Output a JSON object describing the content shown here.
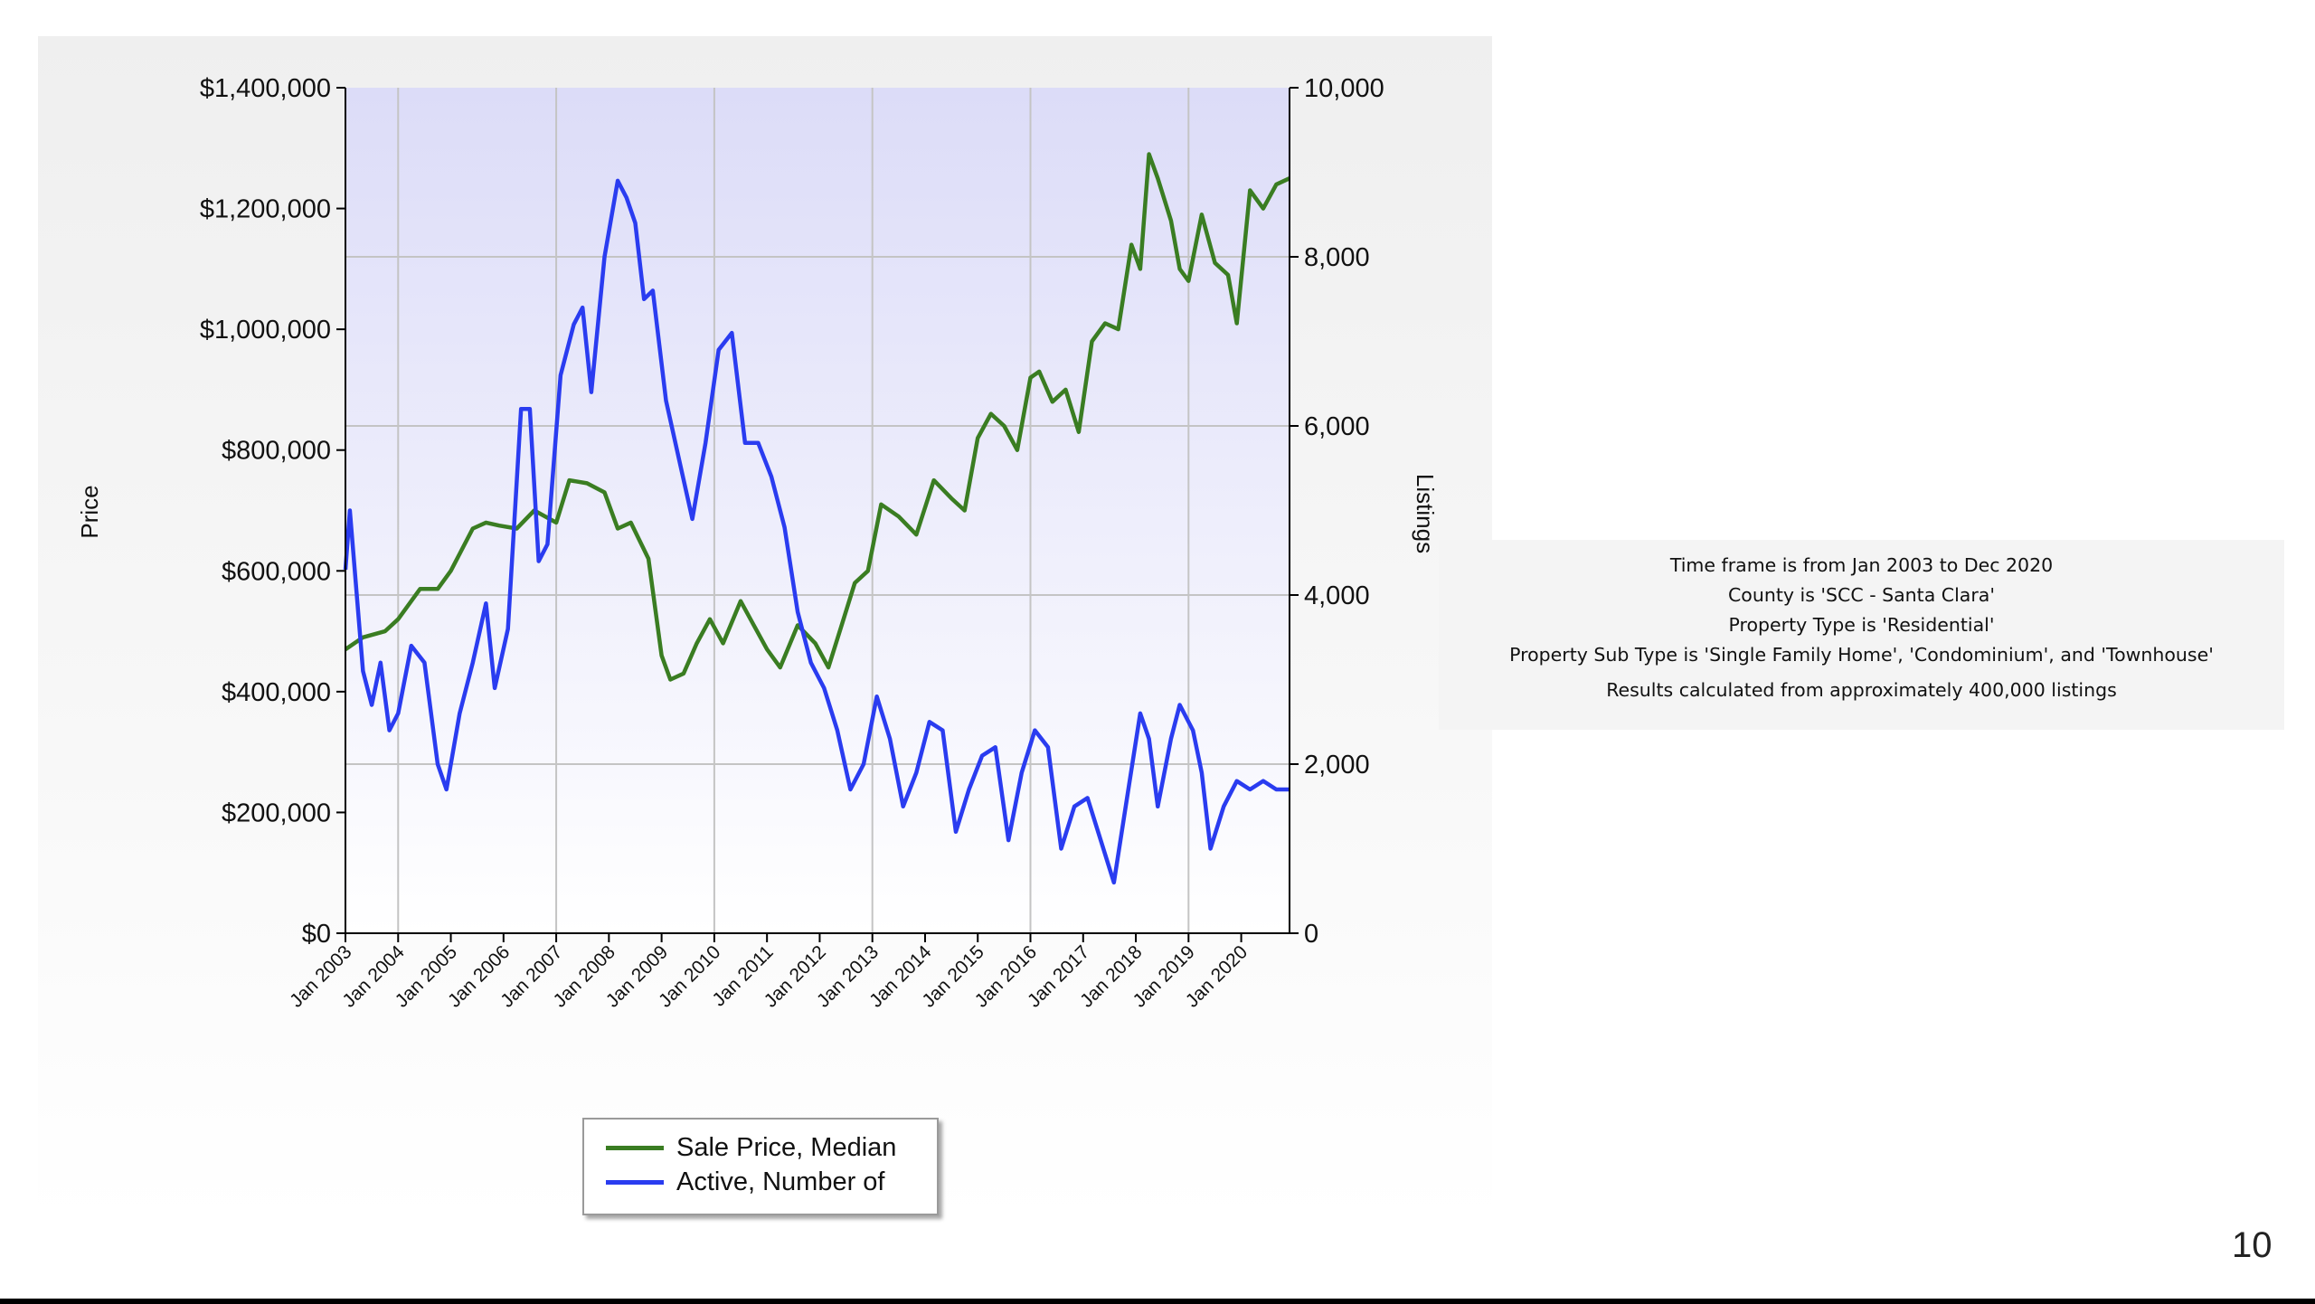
{
  "page_number": "10",
  "info_box": {
    "lines": [
      "Time frame is from Jan 2003 to Dec 2020",
      "County is 'SCC - Santa Clara'",
      "Property Type is 'Residential'",
      "Property Sub Type is 'Single Family Home', 'Condominium', and 'Townhouse'"
    ],
    "results": "Results calculated from approximately 400,000 listings"
  },
  "chart_data": {
    "type": "line",
    "ylabel": "Price",
    "y2label": "Listings",
    "ylim": [
      0,
      1400000
    ],
    "y2lim": [
      0,
      10000
    ],
    "y_ticks": [
      "$0",
      "$200,000",
      "$400,000",
      "$600,000",
      "$800,000",
      "$1,000,000",
      "$1,200,000",
      "$1,400,000"
    ],
    "y2_ticks": [
      "0",
      "2,000",
      "4,000",
      "6,000",
      "8,000",
      "10,000"
    ],
    "x_ticks": [
      "Jan 2003",
      "Jan 2004",
      "Jan 2005",
      "Jan 2006",
      "Jan 2007",
      "Jan 2008",
      "Jan 2009",
      "Jan 2010",
      "Jan 2011",
      "Jan 2012",
      "Jan 2013",
      "Jan 2014",
      "Jan 2015",
      "Jan 2016",
      "Jan 2017",
      "Jan 2018",
      "Jan 2019",
      "Jan 2020"
    ],
    "x_range": [
      "2003-01",
      "2020-12"
    ],
    "grid": true,
    "legend_position": "bottom",
    "series": [
      {
        "name": "Sale Price, Median",
        "axis": "left",
        "color": "#3a7d22",
        "points": [
          [
            "2003-01",
            470000
          ],
          [
            "2003-05",
            490000
          ],
          [
            "2003-10",
            500000
          ],
          [
            "2004-01",
            520000
          ],
          [
            "2004-06",
            570000
          ],
          [
            "2004-10",
            570000
          ],
          [
            "2005-01",
            600000
          ],
          [
            "2005-06",
            670000
          ],
          [
            "2005-09",
            680000
          ],
          [
            "2005-12",
            675000
          ],
          [
            "2006-04",
            670000
          ],
          [
            "2006-08",
            700000
          ],
          [
            "2007-01",
            680000
          ],
          [
            "2007-04",
            750000
          ],
          [
            "2007-08",
            745000
          ],
          [
            "2007-12",
            730000
          ],
          [
            "2008-03",
            670000
          ],
          [
            "2008-06",
            680000
          ],
          [
            "2008-10",
            620000
          ],
          [
            "2009-01",
            460000
          ],
          [
            "2009-03",
            420000
          ],
          [
            "2009-06",
            430000
          ],
          [
            "2009-09",
            480000
          ],
          [
            "2009-12",
            520000
          ],
          [
            "2010-03",
            480000
          ],
          [
            "2010-07",
            550000
          ],
          [
            "2010-10",
            510000
          ],
          [
            "2011-01",
            470000
          ],
          [
            "2011-04",
            440000
          ],
          [
            "2011-08",
            510000
          ],
          [
            "2011-12",
            480000
          ],
          [
            "2012-03",
            440000
          ],
          [
            "2012-06",
            510000
          ],
          [
            "2012-09",
            580000
          ],
          [
            "2012-12",
            600000
          ],
          [
            "2013-03",
            710000
          ],
          [
            "2013-07",
            690000
          ],
          [
            "2013-11",
            660000
          ],
          [
            "2014-03",
            750000
          ],
          [
            "2014-07",
            720000
          ],
          [
            "2014-10",
            700000
          ],
          [
            "2015-01",
            820000
          ],
          [
            "2015-04",
            860000
          ],
          [
            "2015-07",
            840000
          ],
          [
            "2015-10",
            800000
          ],
          [
            "2016-01",
            920000
          ],
          [
            "2016-03",
            930000
          ],
          [
            "2016-06",
            880000
          ],
          [
            "2016-09",
            900000
          ],
          [
            "2016-12",
            830000
          ],
          [
            "2017-03",
            980000
          ],
          [
            "2017-06",
            1010000
          ],
          [
            "2017-09",
            1000000
          ],
          [
            "2017-12",
            1140000
          ],
          [
            "2018-02",
            1100000
          ],
          [
            "2018-04",
            1290000
          ],
          [
            "2018-06",
            1250000
          ],
          [
            "2018-09",
            1180000
          ],
          [
            "2018-11",
            1100000
          ],
          [
            "2019-01",
            1080000
          ],
          [
            "2019-04",
            1190000
          ],
          [
            "2019-07",
            1110000
          ],
          [
            "2019-10",
            1090000
          ],
          [
            "2019-12",
            1010000
          ],
          [
            "2020-03",
            1230000
          ],
          [
            "2020-06",
            1200000
          ],
          [
            "2020-09",
            1240000
          ],
          [
            "2020-12",
            1250000
          ]
        ]
      },
      {
        "name": "Active, Number of",
        "axis": "right",
        "color": "#2a3cf0",
        "points": [
          [
            "2003-01",
            4300
          ],
          [
            "2003-02",
            5000
          ],
          [
            "2003-05",
            3100
          ],
          [
            "2003-07",
            2700
          ],
          [
            "2003-09",
            3200
          ],
          [
            "2003-11",
            2400
          ],
          [
            "2004-01",
            2600
          ],
          [
            "2004-04",
            3400
          ],
          [
            "2004-07",
            3200
          ],
          [
            "2004-10",
            2000
          ],
          [
            "2004-12",
            1700
          ],
          [
            "2005-03",
            2600
          ],
          [
            "2005-06",
            3200
          ],
          [
            "2005-09",
            3900
          ],
          [
            "2005-11",
            2900
          ],
          [
            "2006-02",
            3600
          ],
          [
            "2006-05",
            6200
          ],
          [
            "2006-07",
            6200
          ],
          [
            "2006-09",
            4400
          ],
          [
            "2006-11",
            4600
          ],
          [
            "2007-02",
            6600
          ],
          [
            "2007-05",
            7200
          ],
          [
            "2007-07",
            7400
          ],
          [
            "2007-09",
            6400
          ],
          [
            "2007-12",
            8000
          ],
          [
            "2008-03",
            8900
          ],
          [
            "2008-05",
            8700
          ],
          [
            "2008-07",
            8400
          ],
          [
            "2008-09",
            7500
          ],
          [
            "2008-11",
            7600
          ],
          [
            "2009-02",
            6300
          ],
          [
            "2009-05",
            5600
          ],
          [
            "2009-08",
            4900
          ],
          [
            "2009-11",
            5800
          ],
          [
            "2010-02",
            6900
          ],
          [
            "2010-05",
            7100
          ],
          [
            "2010-08",
            5800
          ],
          [
            "2010-11",
            5800
          ],
          [
            "2011-02",
            5400
          ],
          [
            "2011-05",
            4800
          ],
          [
            "2011-08",
            3800
          ],
          [
            "2011-11",
            3200
          ],
          [
            "2012-02",
            2900
          ],
          [
            "2012-05",
            2400
          ],
          [
            "2012-08",
            1700
          ],
          [
            "2012-11",
            2000
          ],
          [
            "2013-02",
            2800
          ],
          [
            "2013-05",
            2300
          ],
          [
            "2013-08",
            1500
          ],
          [
            "2013-11",
            1900
          ],
          [
            "2014-02",
            2500
          ],
          [
            "2014-05",
            2400
          ],
          [
            "2014-08",
            1200
          ],
          [
            "2014-11",
            1700
          ],
          [
            "2015-02",
            2100
          ],
          [
            "2015-05",
            2200
          ],
          [
            "2015-08",
            1100
          ],
          [
            "2015-11",
            1900
          ],
          [
            "2016-02",
            2400
          ],
          [
            "2016-05",
            2200
          ],
          [
            "2016-08",
            1000
          ],
          [
            "2016-11",
            1500
          ],
          [
            "2017-02",
            1600
          ],
          [
            "2017-05",
            1100
          ],
          [
            "2017-08",
            600
          ],
          [
            "2017-11",
            1600
          ],
          [
            "2018-02",
            2600
          ],
          [
            "2018-04",
            2300
          ],
          [
            "2018-06",
            1500
          ],
          [
            "2018-09",
            2300
          ],
          [
            "2018-11",
            2700
          ],
          [
            "2019-02",
            2400
          ],
          [
            "2019-04",
            1900
          ],
          [
            "2019-06",
            1000
          ],
          [
            "2019-09",
            1500
          ],
          [
            "2019-12",
            1800
          ],
          [
            "2020-03",
            1700
          ],
          [
            "2020-06",
            1800
          ],
          [
            "2020-09",
            1700
          ],
          [
            "2020-12",
            1700
          ]
        ]
      }
    ]
  }
}
